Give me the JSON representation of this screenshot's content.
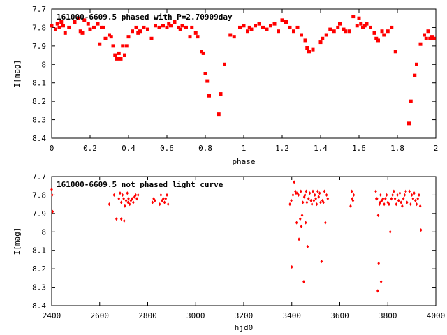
{
  "chart_data": [
    {
      "type": "scatter",
      "title": "161000-6609.5 phased with P=2.70909day",
      "xlabel": "phase",
      "ylabel": "I[mag]",
      "xlim": [
        0,
        2
      ],
      "ylim": [
        8.4,
        7.7
      ],
      "y_inverted": true,
      "grid": false,
      "marker_color": "#ff0000",
      "marker_style": "filled square",
      "x_ticks": [
        0,
        0.2,
        0.4,
        0.6,
        0.8,
        1,
        1.2,
        1.4,
        1.6,
        1.8,
        2
      ],
      "x_tick_labels": [
        "0",
        "0.2",
        "0.4",
        "0.6",
        "0.8",
        "1",
        "1.2",
        "1.4",
        "1.6",
        "1.8",
        "2"
      ],
      "y_ticks": [
        7.7,
        7.8,
        7.9,
        8,
        8.1,
        8.2,
        8.3,
        8.4
      ],
      "y_tick_labels": [
        "7.7",
        "7.8",
        "7.9",
        "8",
        "8.1",
        "8.2",
        "8.3",
        "8.4"
      ],
      "points": [
        [
          0.0,
          7.79
        ],
        [
          0.02,
          7.81
        ],
        [
          0.03,
          7.78
        ],
        [
          0.04,
          7.8
        ],
        [
          0.05,
          7.77
        ],
        [
          0.06,
          7.79
        ],
        [
          0.07,
          7.83
        ],
        [
          0.09,
          7.8
        ],
        [
          0.12,
          7.77
        ],
        [
          0.14,
          7.75
        ],
        [
          0.15,
          7.82
        ],
        [
          0.16,
          7.83
        ],
        [
          0.17,
          7.76
        ],
        [
          0.19,
          7.78
        ],
        [
          0.2,
          7.81
        ],
        [
          0.22,
          7.8
        ],
        [
          0.24,
          7.78
        ],
        [
          0.25,
          7.89
        ],
        [
          0.26,
          7.8
        ],
        [
          0.27,
          7.8
        ],
        [
          0.28,
          7.86
        ],
        [
          0.3,
          7.84
        ],
        [
          0.31,
          7.85
        ],
        [
          0.32,
          7.9
        ],
        [
          0.33,
          7.95
        ],
        [
          0.34,
          7.97
        ],
        [
          0.35,
          7.94
        ],
        [
          0.36,
          7.97
        ],
        [
          0.37,
          7.9
        ],
        [
          0.38,
          7.95
        ],
        [
          0.39,
          7.9
        ],
        [
          0.4,
          7.85
        ],
        [
          0.42,
          7.82
        ],
        [
          0.44,
          7.8
        ],
        [
          0.45,
          7.83
        ],
        [
          0.46,
          7.82
        ],
        [
          0.48,
          7.8
        ],
        [
          0.5,
          7.81
        ],
        [
          0.52,
          7.86
        ],
        [
          0.54,
          7.79
        ],
        [
          0.56,
          7.8
        ],
        [
          0.58,
          7.79
        ],
        [
          0.6,
          7.8
        ],
        [
          0.61,
          7.78
        ],
        [
          0.62,
          7.79
        ],
        [
          0.64,
          7.77
        ],
        [
          0.66,
          7.8
        ],
        [
          0.67,
          7.81
        ],
        [
          0.68,
          7.79
        ],
        [
          0.7,
          7.8
        ],
        [
          0.72,
          7.85
        ],
        [
          0.73,
          7.8
        ],
        [
          0.75,
          7.83
        ],
        [
          0.76,
          7.85
        ],
        [
          0.78,
          7.93
        ],
        [
          0.79,
          7.94
        ],
        [
          0.8,
          8.05
        ],
        [
          0.81,
          8.09
        ],
        [
          0.82,
          8.17
        ],
        [
          0.87,
          8.27
        ],
        [
          0.88,
          8.16
        ],
        [
          0.9,
          8.0
        ],
        [
          0.93,
          7.84
        ],
        [
          0.95,
          7.85
        ],
        [
          0.98,
          7.8
        ],
        [
          1.0,
          7.79
        ],
        [
          1.02,
          7.82
        ],
        [
          1.03,
          7.8
        ],
        [
          1.04,
          7.81
        ],
        [
          1.06,
          7.79
        ],
        [
          1.08,
          7.78
        ],
        [
          1.1,
          7.8
        ],
        [
          1.12,
          7.81
        ],
        [
          1.14,
          7.79
        ],
        [
          1.16,
          7.78
        ],
        [
          1.18,
          7.82
        ],
        [
          1.2,
          7.76
        ],
        [
          1.22,
          7.77
        ],
        [
          1.24,
          7.8
        ],
        [
          1.26,
          7.82
        ],
        [
          1.28,
          7.8
        ],
        [
          1.3,
          7.84
        ],
        [
          1.32,
          7.87
        ],
        [
          1.33,
          7.91
        ],
        [
          1.34,
          7.93
        ],
        [
          1.36,
          7.92
        ],
        [
          1.4,
          7.88
        ],
        [
          1.41,
          7.86
        ],
        [
          1.43,
          7.84
        ],
        [
          1.45,
          7.81
        ],
        [
          1.47,
          7.82
        ],
        [
          1.49,
          7.8
        ],
        [
          1.5,
          7.78
        ],
        [
          1.52,
          7.81
        ],
        [
          1.53,
          7.82
        ],
        [
          1.55,
          7.82
        ],
        [
          1.57,
          7.74
        ],
        [
          1.59,
          7.79
        ],
        [
          1.6,
          7.75
        ],
        [
          1.61,
          7.78
        ],
        [
          1.62,
          7.8
        ],
        [
          1.63,
          7.79
        ],
        [
          1.64,
          7.78
        ],
        [
          1.66,
          7.8
        ],
        [
          1.68,
          7.83
        ],
        [
          1.69,
          7.86
        ],
        [
          1.7,
          7.87
        ],
        [
          1.72,
          7.82
        ],
        [
          1.73,
          7.84
        ],
        [
          1.75,
          7.82
        ],
        [
          1.77,
          7.8
        ],
        [
          1.79,
          7.93
        ],
        [
          1.86,
          8.32
        ],
        [
          1.87,
          8.2
        ],
        [
          1.89,
          8.06
        ],
        [
          1.9,
          8.0
        ],
        [
          1.92,
          7.89
        ],
        [
          1.94,
          7.84
        ],
        [
          1.95,
          7.86
        ],
        [
          1.96,
          7.82
        ],
        [
          1.97,
          7.86
        ],
        [
          1.98,
          7.85
        ],
        [
          1.99,
          7.86
        ]
      ]
    },
    {
      "type": "scatter",
      "title": "161000-6609.5 not phased light curve",
      "xlabel": "hjd0",
      "ylabel": "I[mag]",
      "xlim": [
        2400,
        4000
      ],
      "ylim": [
        8.4,
        7.7
      ],
      "y_inverted": true,
      "grid": false,
      "marker_color": "#ff0000",
      "marker_style": "filled diamond",
      "x_ticks": [
        2400,
        2600,
        2800,
        3000,
        3200,
        3400,
        3600,
        3800,
        4000
      ],
      "x_tick_labels": [
        "2400",
        "2600",
        "2800",
        "3000",
        "3200",
        "3400",
        "3600",
        "3800",
        "4000"
      ],
      "y_ticks": [
        7.7,
        7.8,
        7.9,
        8,
        8.1,
        8.2,
        8.3,
        8.4
      ],
      "y_tick_labels": [
        "7.7",
        "7.8",
        "7.9",
        "8",
        "8.1",
        "8.2",
        "8.3",
        "8.4"
      ],
      "points": [
        [
          2400,
          7.77
        ],
        [
          2402,
          7.8
        ],
        [
          2404,
          7.89
        ],
        [
          2640,
          7.85
        ],
        [
          2660,
          7.8
        ],
        [
          2670,
          7.93
        ],
        [
          2680,
          7.82
        ],
        [
          2685,
          7.79
        ],
        [
          2690,
          7.84
        ],
        [
          2695,
          7.8
        ],
        [
          2700,
          7.82
        ],
        [
          2702,
          7.94
        ],
        [
          2705,
          7.86
        ],
        [
          2710,
          7.83
        ],
        [
          2715,
          7.79
        ],
        [
          2718,
          7.84
        ],
        [
          2720,
          7.82
        ],
        [
          2725,
          7.85
        ],
        [
          2730,
          7.83
        ],
        [
          2735,
          7.82
        ],
        [
          2740,
          7.84
        ],
        [
          2745,
          7.81
        ],
        [
          2750,
          7.8
        ],
        [
          2755,
          7.82
        ],
        [
          2760,
          7.8
        ],
        [
          2690,
          7.93
        ],
        [
          2820,
          7.84
        ],
        [
          2825,
          7.82
        ],
        [
          2830,
          7.83
        ],
        [
          2850,
          7.85
        ],
        [
          2855,
          7.8
        ],
        [
          2860,
          7.83
        ],
        [
          2865,
          7.82
        ],
        [
          2870,
          7.84
        ],
        [
          2875,
          7.82
        ],
        [
          2880,
          7.8
        ],
        [
          2885,
          7.85
        ],
        [
          3392,
          7.85
        ],
        [
          3398,
          7.83
        ],
        [
          3400,
          8.19
        ],
        [
          3405,
          7.8
        ],
        [
          3410,
          7.73
        ],
        [
          3415,
          7.78
        ],
        [
          3418,
          7.79
        ],
        [
          3420,
          7.95
        ],
        [
          3424,
          7.79
        ],
        [
          3428,
          7.8
        ],
        [
          3430,
          8.04
        ],
        [
          3435,
          7.93
        ],
        [
          3438,
          7.78
        ],
        [
          3440,
          7.97
        ],
        [
          3443,
          7.91
        ],
        [
          3446,
          7.84
        ],
        [
          3450,
          8.27
        ],
        [
          3452,
          7.81
        ],
        [
          3455,
          7.8
        ],
        [
          3458,
          7.95
        ],
        [
          3460,
          7.78
        ],
        [
          3463,
          7.84
        ],
        [
          3466,
          8.08
        ],
        [
          3470,
          7.82
        ],
        [
          3475,
          7.79
        ],
        [
          3480,
          7.83
        ],
        [
          3484,
          7.85
        ],
        [
          3488,
          7.78
        ],
        [
          3492,
          7.83
        ],
        [
          3496,
          7.8
        ],
        [
          3500,
          7.82
        ],
        [
          3504,
          7.85
        ],
        [
          3508,
          7.78
        ],
        [
          3512,
          7.81
        ],
        [
          3516,
          7.79
        ],
        [
          3520,
          7.84
        ],
        [
          3524,
          8.16
        ],
        [
          3528,
          7.83
        ],
        [
          3532,
          7.84
        ],
        [
          3536,
          7.78
        ],
        [
          3540,
          7.95
        ],
        [
          3545,
          7.8
        ],
        [
          3550,
          7.82
        ],
        [
          3645,
          7.86
        ],
        [
          3650,
          7.78
        ],
        [
          3652,
          7.82
        ],
        [
          3655,
          7.83
        ],
        [
          3658,
          7.8
        ],
        [
          3750,
          7.78
        ],
        [
          3752,
          7.82
        ],
        [
          3755,
          7.82
        ],
        [
          3758,
          8.32
        ],
        [
          3760,
          7.91
        ],
        [
          3762,
          8.17
        ],
        [
          3765,
          7.85
        ],
        [
          3768,
          7.84
        ],
        [
          3770,
          7.8
        ],
        [
          3772,
          8.27
        ],
        [
          3775,
          7.83
        ],
        [
          3780,
          7.82
        ],
        [
          3785,
          7.85
        ],
        [
          3790,
          7.82
        ],
        [
          3795,
          7.8
        ],
        [
          3800,
          7.84
        ],
        [
          3805,
          7.85
        ],
        [
          3810,
          8.0
        ],
        [
          3815,
          7.82
        ],
        [
          3820,
          7.8
        ],
        [
          3825,
          7.78
        ],
        [
          3830,
          7.82
        ],
        [
          3835,
          7.85
        ],
        [
          3840,
          7.8
        ],
        [
          3845,
          7.83
        ],
        [
          3850,
          7.79
        ],
        [
          3855,
          7.84
        ],
        [
          3860,
          7.86
        ],
        [
          3865,
          7.82
        ],
        [
          3870,
          7.8
        ],
        [
          3875,
          7.78
        ],
        [
          3880,
          7.84
        ],
        [
          3890,
          7.78
        ],
        [
          3895,
          7.85
        ],
        [
          3900,
          7.8
        ],
        [
          3905,
          7.82
        ],
        [
          3910,
          7.79
        ],
        [
          3915,
          7.83
        ],
        [
          3920,
          7.85
        ],
        [
          3925,
          7.82
        ],
        [
          3930,
          7.8
        ],
        [
          3935,
          7.86
        ],
        [
          3938,
          7.99
        ]
      ]
    }
  ]
}
